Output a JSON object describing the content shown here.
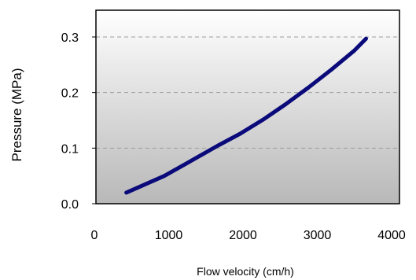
{
  "chart_data": {
    "type": "line",
    "xlabel": "Flow velocity (cm/h)",
    "ylabel": "Pressure (MPa)",
    "xlim": [
      0,
      4000
    ],
    "ylim": [
      0.0,
      0.3
    ],
    "x_ticks": [
      0,
      1000,
      2000,
      3000,
      4000
    ],
    "y_ticks": [
      0.0,
      0.1,
      0.2,
      0.3
    ],
    "x_tick_labels": [
      "0",
      "1000",
      "2000",
      "3000",
      "4000"
    ],
    "y_tick_labels": [
      "0.0",
      "0.1",
      "0.2",
      "0.3"
    ],
    "grid": "horizontal dashed",
    "series": [
      {
        "color": "#0a0a7a",
        "x": [
          400,
          600,
          900,
          1200,
          1600,
          1900,
          2200,
          2500,
          2800,
          3100,
          3400,
          3560
        ],
        "y": [
          0.02,
          0.032,
          0.05,
          0.073,
          0.104,
          0.126,
          0.151,
          0.179,
          0.209,
          0.241,
          0.275,
          0.297
        ]
      }
    ],
    "colors": {
      "plot_bg_top": "#ffffff",
      "plot_bg_bottom": "#b8b8b8",
      "gridline": "#9e9e9e",
      "frame": "#000000"
    }
  }
}
